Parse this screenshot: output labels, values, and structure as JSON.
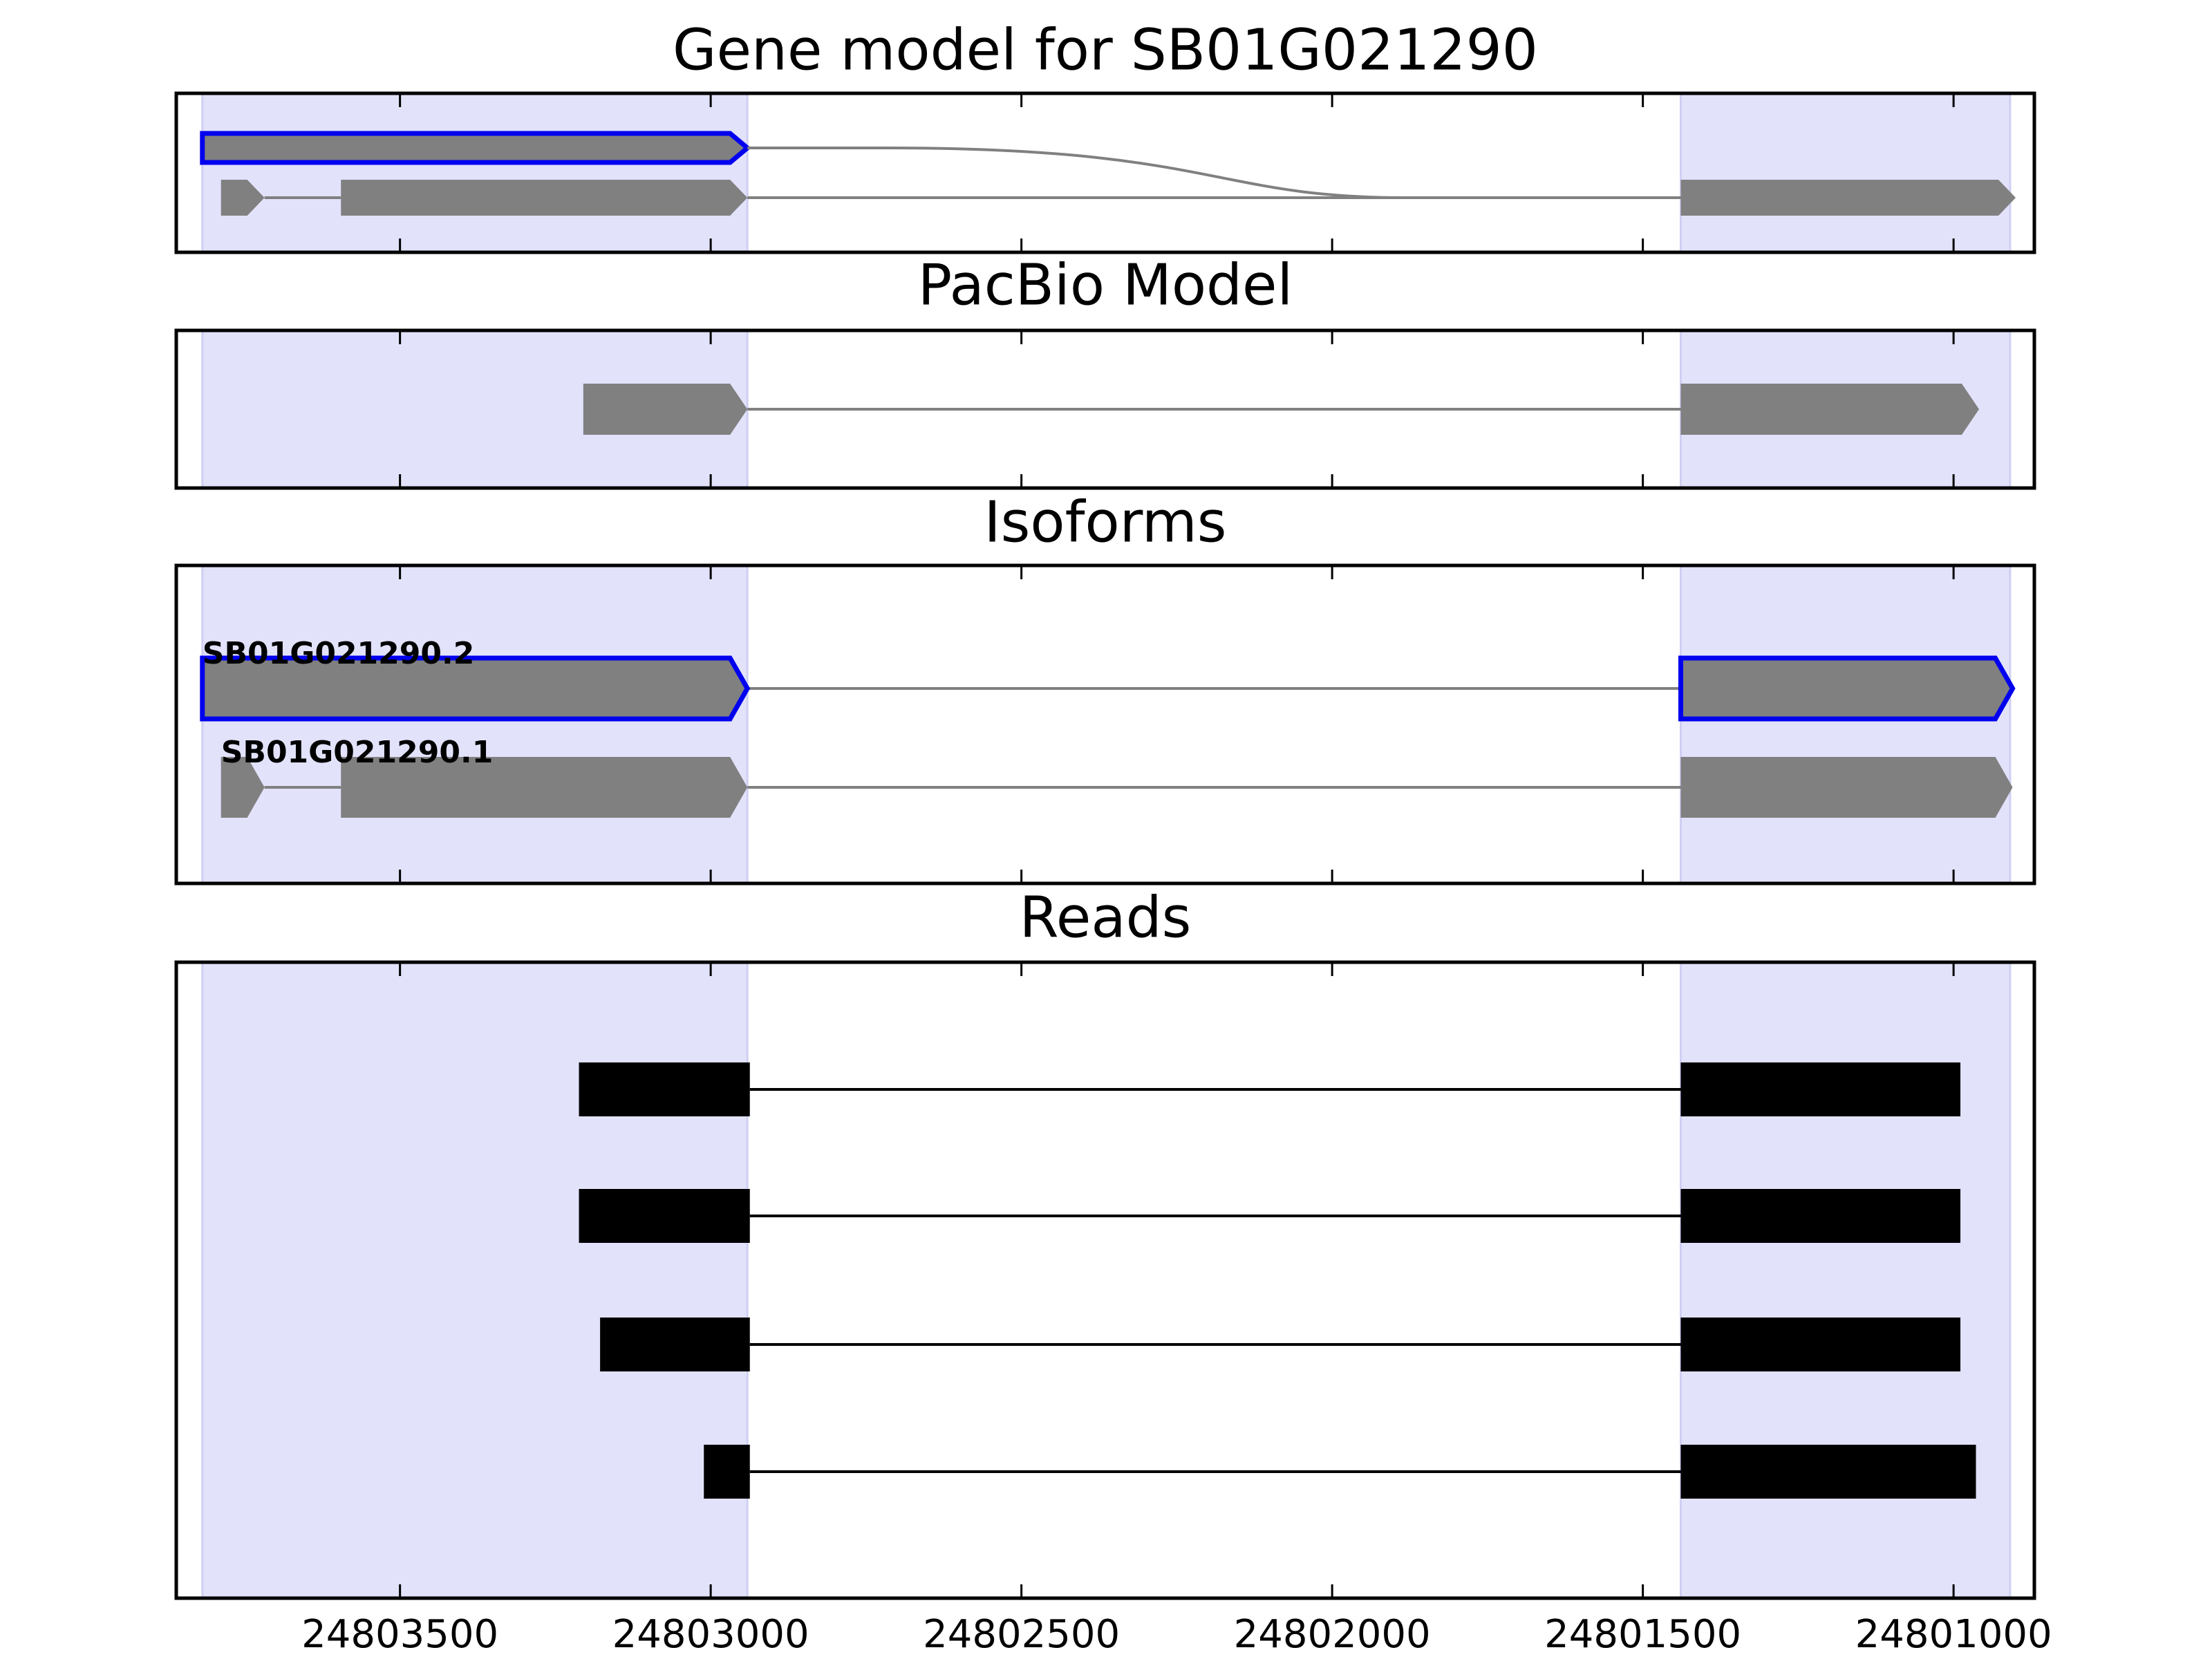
{
  "chart_data": [
    {
      "type": "gene",
      "title": "Gene model for SB01G021290",
      "xlim": [
        24803860,
        24800870
      ],
      "xticks": [
        24803500,
        24803000,
        24802500,
        24802000,
        24801500,
        24801000
      ],
      "regions": [
        [
          24803818,
          24802941
        ],
        [
          24801439,
          24800909
        ]
      ],
      "transcripts": [
        {
          "highlight": true,
          "exons": [
            [
              24803818,
              24802941
            ]
          ]
        },
        {
          "highlight": false,
          "exons": [
            [
              24803788,
              24803718
            ],
            [
              24803595,
              24802941
            ],
            [
              24801439,
              24800900
            ]
          ]
        }
      ]
    },
    {
      "type": "gene",
      "title": "PacBio Model",
      "xlim": [
        24803860,
        24800870
      ],
      "xticks": [
        24803500,
        24803000,
        24802500,
        24802000,
        24801500,
        24801000
      ],
      "regions": [
        [
          24803818,
          24802941
        ],
        [
          24801439,
          24800909
        ]
      ],
      "transcripts": [
        {
          "highlight": false,
          "exons": [
            [
              24803205,
              24802941
            ],
            [
              24801439,
              24800959
            ]
          ]
        }
      ]
    },
    {
      "type": "gene",
      "title": "Isoforms",
      "xlim": [
        24803860,
        24800870
      ],
      "xticks": [
        24803500,
        24803000,
        24802500,
        24802000,
        24801500,
        24801000
      ],
      "regions": [
        [
          24803818,
          24802941
        ],
        [
          24801439,
          24800909
        ]
      ],
      "transcripts": [
        {
          "name": "SB01G021290.2",
          "highlight": true,
          "exons": [
            [
              24803818,
              24802941
            ],
            [
              24801439,
              24800905
            ]
          ]
        },
        {
          "name": "SB01G021290.1",
          "highlight": false,
          "exons": [
            [
              24803788,
              24803718
            ],
            [
              24803595,
              24802941
            ],
            [
              24801439,
              24800905
            ]
          ]
        }
      ]
    },
    {
      "type": "reads",
      "title": "Reads",
      "xlim": [
        24803860,
        24800870
      ],
      "xticks": [
        24803500,
        24803000,
        24802500,
        24802000,
        24801500,
        24801000
      ],
      "regions": [
        [
          24803818,
          24802941
        ],
        [
          24801439,
          24800909
        ]
      ],
      "transcripts": [
        {
          "exons": [
            [
              24803212,
              24802937
            ],
            [
              24801439,
              24800989
            ]
          ]
        },
        {
          "exons": [
            [
              24803212,
              24802937
            ],
            [
              24801439,
              24800989
            ]
          ]
        },
        {
          "exons": [
            [
              24803178,
              24802937
            ],
            [
              24801439,
              24800989
            ]
          ]
        },
        {
          "exons": [
            [
              24803011,
              24802937
            ],
            [
              24801439,
              24800964
            ]
          ]
        }
      ]
    }
  ]
}
